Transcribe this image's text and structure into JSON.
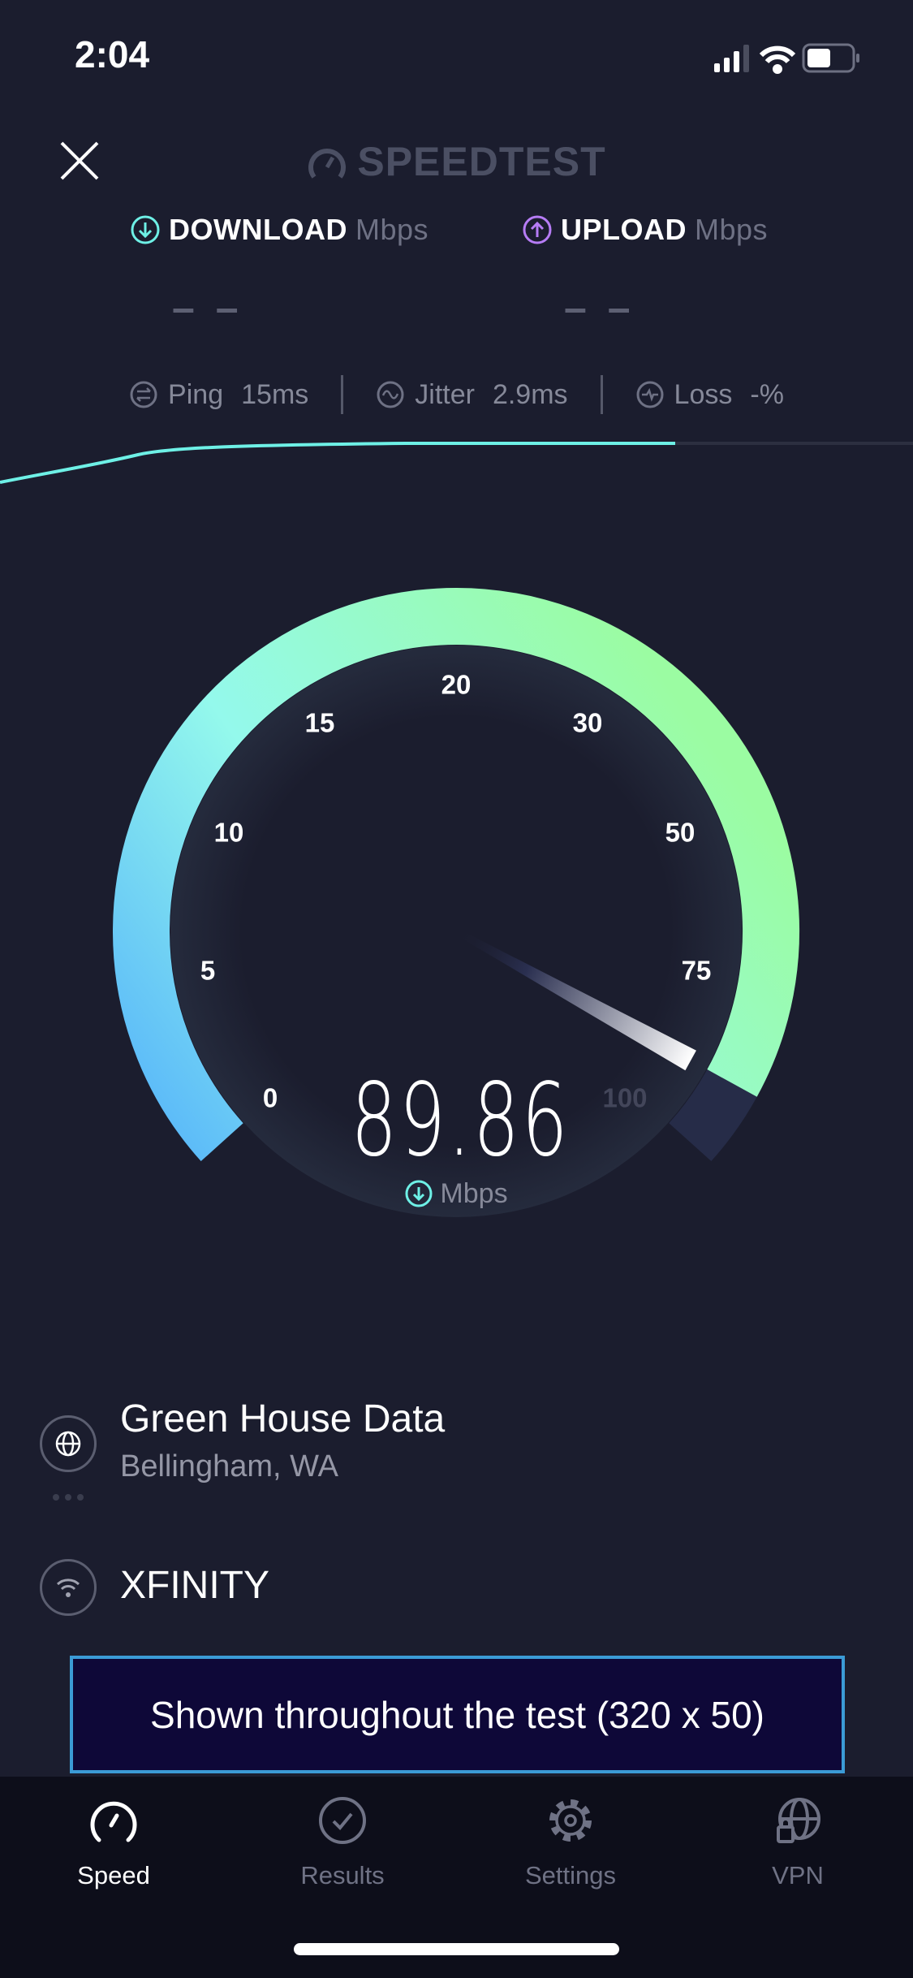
{
  "status_bar": {
    "time": "2:04",
    "icons": [
      "cellular-signal-icon",
      "wifi-icon",
      "battery-icon"
    ]
  },
  "header": {
    "close_icon": "close-icon",
    "logo": "SPEEDTEST"
  },
  "download": {
    "label": "DOWNLOAD",
    "unit": "Mbps",
    "value": "– –",
    "color": "#6ef0e6"
  },
  "upload": {
    "label": "UPLOAD",
    "unit": "Mbps",
    "value": "– –",
    "color": "#b67cf5"
  },
  "metrics": {
    "ping": {
      "label": "Ping",
      "value": "15",
      "unit": "ms"
    },
    "jitter": {
      "label": "Jitter",
      "value": "2.9",
      "unit": "ms"
    },
    "loss": {
      "label": "Loss",
      "value": "-",
      "unit": "%"
    }
  },
  "gauge": {
    "ticks": [
      "0",
      "5",
      "10",
      "15",
      "20",
      "30",
      "50",
      "75",
      "100"
    ],
    "current_value": "89.86",
    "unit": "Mbps",
    "fill_fraction": 0.95,
    "colors": {
      "start": "#56b4fa",
      "mid": "#94f9ec",
      "end": "#9bfca2",
      "track": "#262c48"
    }
  },
  "server": {
    "name": "Green House Data",
    "location": "Bellingham, WA"
  },
  "isp": {
    "name": "XFINITY"
  },
  "ad": {
    "text": "Shown throughout the test (320 x 50)"
  },
  "tabs": [
    {
      "label": "Speed",
      "icon": "speedometer-icon",
      "active": true
    },
    {
      "label": "Results",
      "icon": "checkmark-circle-icon",
      "active": false
    },
    {
      "label": "Settings",
      "icon": "gear-icon",
      "active": false
    },
    {
      "label": "VPN",
      "icon": "globe-lock-icon",
      "active": false
    }
  ]
}
